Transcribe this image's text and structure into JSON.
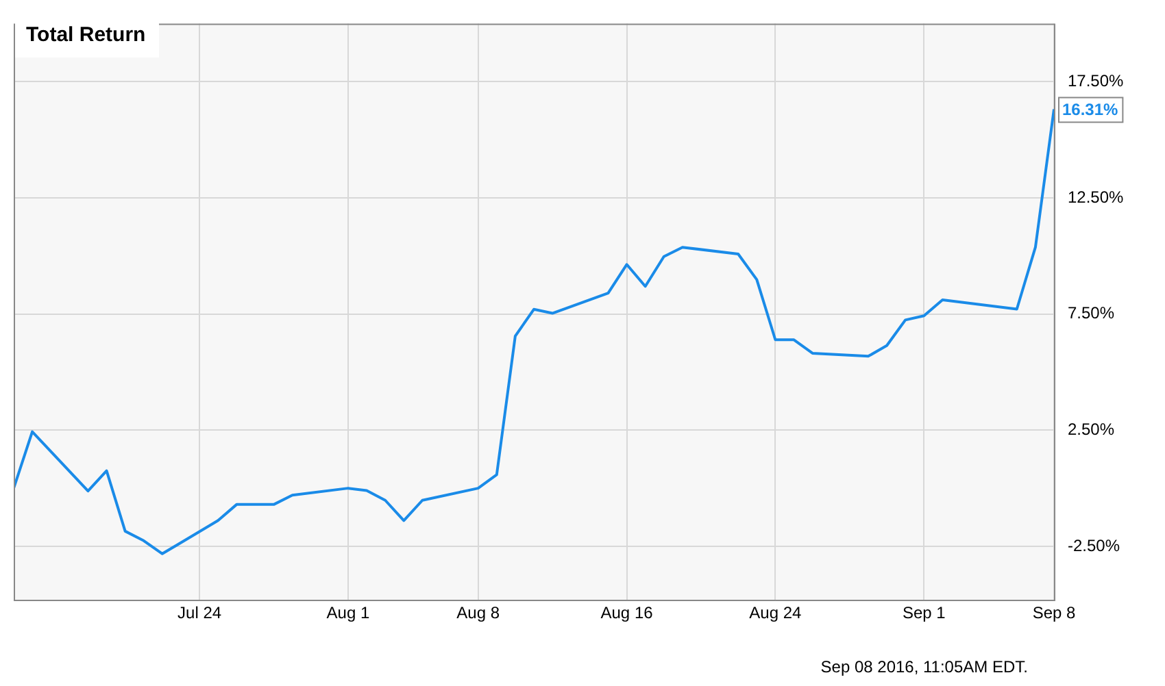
{
  "chart_data": {
    "type": "line",
    "title": "Total Return",
    "x": [
      "2016-07-14",
      "2016-07-15",
      "2016-07-18",
      "2016-07-19",
      "2016-07-20",
      "2016-07-21",
      "2016-07-22",
      "2016-07-25",
      "2016-07-26",
      "2016-07-27",
      "2016-07-28",
      "2016-07-29",
      "2016-08-01",
      "2016-08-02",
      "2016-08-03",
      "2016-08-04",
      "2016-08-05",
      "2016-08-08",
      "2016-08-09",
      "2016-08-10",
      "2016-08-11",
      "2016-08-12",
      "2016-08-15",
      "2016-08-16",
      "2016-08-17",
      "2016-08-18",
      "2016-08-19",
      "2016-08-22",
      "2016-08-23",
      "2016-08-24",
      "2016-08-25",
      "2016-08-26",
      "2016-08-29",
      "2016-08-30",
      "2016-08-31",
      "2016-09-01",
      "2016-09-02",
      "2016-09-06",
      "2016-09-07",
      "2016-09-08"
    ],
    "series": [
      {
        "color": "#1a8be8",
        "values": [
          0.0,
          2.43,
          -0.12,
          0.75,
          -1.85,
          -2.26,
          -2.82,
          -1.39,
          -0.7,
          -0.7,
          -0.7,
          -0.3,
          0.0,
          -0.1,
          -0.52,
          -1.39,
          -0.52,
          0.0,
          0.58,
          6.55,
          7.7,
          7.53,
          8.4,
          9.63,
          8.69,
          9.97,
          10.37,
          10.08,
          8.98,
          6.39,
          6.39,
          5.81,
          5.68,
          6.14,
          7.24,
          7.42,
          8.11,
          7.71,
          10.37,
          16.31
        ]
      }
    ],
    "xlim": [
      "2016-07-14",
      "2016-09-08"
    ],
    "xticks": [
      {
        "value": "2016-07-24",
        "label": "Jul 24"
      },
      {
        "value": "2016-08-01",
        "label": "Aug 1"
      },
      {
        "value": "2016-08-08",
        "label": "Aug 8"
      },
      {
        "value": "2016-08-16",
        "label": "Aug 16"
      },
      {
        "value": "2016-08-24",
        "label": "Aug 24"
      },
      {
        "value": "2016-09-01",
        "label": "Sep 1"
      },
      {
        "value": "2016-09-08",
        "label": "Sep 8"
      }
    ],
    "ylim": [
      -4.8,
      20
    ],
    "yticks": [
      {
        "value": -2.5,
        "label": "-2.50%"
      },
      {
        "value": 2.5,
        "label": "2.50%"
      },
      {
        "value": 7.5,
        "label": "7.50%"
      },
      {
        "value": 12.5,
        "label": "12.50%"
      },
      {
        "value": 17.5,
        "label": "17.50%"
      }
    ],
    "grid": true,
    "legend": false,
    "marker": "none",
    "line_style": "solid",
    "annotations": [
      {
        "text": "16.31%",
        "x": "2016-09-08",
        "y": 16.31
      },
      "Sep 08 2016, 11:05AM EDT."
    ]
  }
}
